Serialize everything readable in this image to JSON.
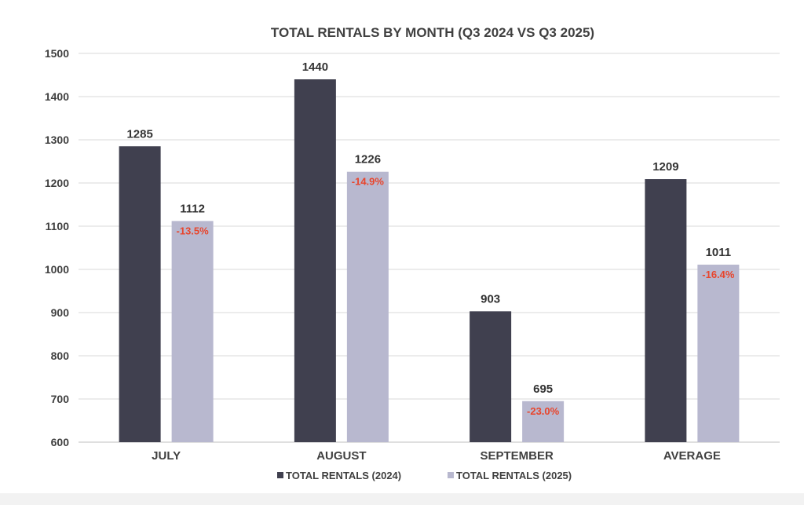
{
  "colors": {
    "series_2024": "#40404f",
    "series_2025": "#b8b8cf",
    "pct_label": "#e8452c"
  },
  "chart_data": {
    "type": "bar",
    "title": "TOTAL RENTALS BY MONTH (Q3 2024 VS Q3 2025)",
    "xlabel": "",
    "ylabel": "",
    "ylim": [
      600,
      1500
    ],
    "yticks": [
      600,
      700,
      800,
      900,
      1000,
      1100,
      1200,
      1300,
      1400,
      1500
    ],
    "grid": true,
    "legend_position": "bottom",
    "categories": [
      "JULY",
      "AUGUST",
      "SEPTEMBER",
      "AVERAGE"
    ],
    "series": [
      {
        "name": "TOTAL RENTALS (2024)",
        "values": [
          1285,
          1440,
          903,
          1209
        ],
        "value_labels": [
          "1285",
          "1440",
          "903",
          "1209"
        ]
      },
      {
        "name": "TOTAL RENTALS (2025)",
        "values": [
          1112,
          1226,
          695,
          1011
        ],
        "value_labels": [
          "1112",
          "1226",
          "695",
          "1011"
        ],
        "change_labels": [
          "-13.5%",
          "-14.9%",
          "-23.0%",
          "-16.4%"
        ]
      }
    ]
  }
}
